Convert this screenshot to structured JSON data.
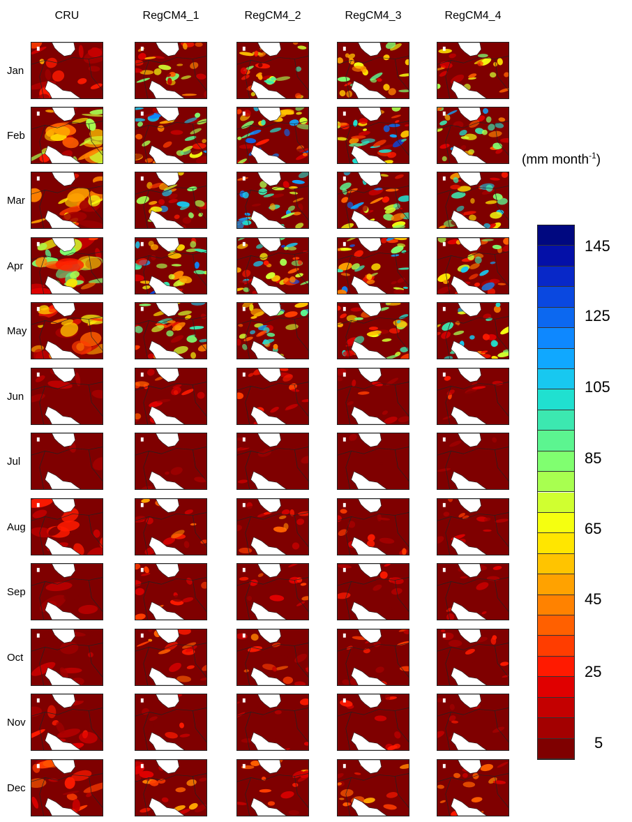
{
  "columns": [
    "CRU",
    "RegCM4_1",
    "RegCM4_2",
    "RegCM4_3",
    "RegCM4_4"
  ],
  "rows": [
    "Jan",
    "Feb",
    "Mar",
    "Apr",
    "May",
    "Jun",
    "Jul",
    "Aug",
    "Sep",
    "Oct",
    "Nov",
    "Dec"
  ],
  "colorbar": {
    "unit_prefix": "(mm month",
    "unit_exp": "-1",
    "unit_suffix": ")",
    "ticks": [
      "145",
      "125",
      "105",
      "85",
      "65",
      "45",
      "25",
      "5"
    ],
    "colors_bottom_to_top": [
      "#7f0000",
      "#a30000",
      "#c40000",
      "#e00000",
      "#ff1a00",
      "#ff3d00",
      "#ff6000",
      "#ff8200",
      "#ffa200",
      "#ffc400",
      "#ffe600",
      "#f5ff10",
      "#d0ff30",
      "#a8ff50",
      "#80ff70",
      "#5cf590",
      "#3ce8b0",
      "#20e0d0",
      "#18c8f0",
      "#10a8ff",
      "#0e88ff",
      "#0c68f0",
      "#0a48e0",
      "#0828c8",
      "#0410a8",
      "#000880"
    ]
  },
  "intensity": {
    "CRU": [
      0.35,
      0.6,
      0.55,
      0.7,
      0.5,
      0.12,
      0.06,
      0.2,
      0.1,
      0.12,
      0.2,
      0.3
    ],
    "RegCM4_1": [
      0.55,
      0.75,
      0.7,
      0.8,
      0.7,
      0.25,
      0.08,
      0.3,
      0.22,
      0.25,
      0.15,
      0.3
    ],
    "RegCM4_2": [
      0.6,
      0.8,
      0.72,
      0.8,
      0.72,
      0.25,
      0.08,
      0.3,
      0.25,
      0.25,
      0.15,
      0.3
    ],
    "RegCM4_3": [
      0.55,
      0.78,
      0.75,
      0.75,
      0.65,
      0.18,
      0.06,
      0.22,
      0.15,
      0.2,
      0.18,
      0.3
    ],
    "RegCM4_4": [
      0.5,
      0.7,
      0.65,
      0.75,
      0.65,
      0.2,
      0.06,
      0.22,
      0.15,
      0.2,
      0.15,
      0.25
    ]
  }
}
